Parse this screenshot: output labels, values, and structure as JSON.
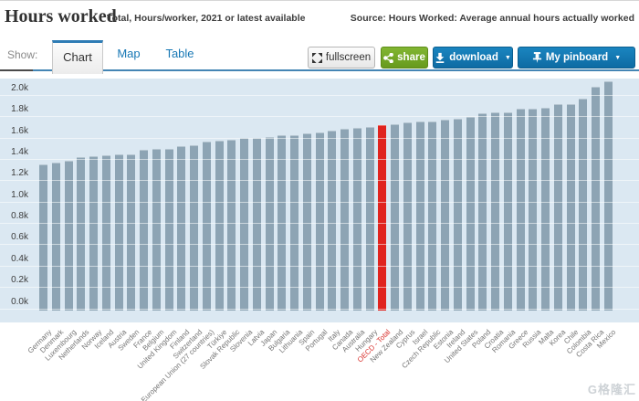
{
  "header": {
    "title": "Hours worked",
    "subtitle": "Total, Hours/worker, 2021 or latest available",
    "source": "Source: Hours Worked: Average annual hours actually worked"
  },
  "tabbar": {
    "show_label": "Show:",
    "tabs": [
      {
        "label": "Chart",
        "active": true
      },
      {
        "label": "Map",
        "active": false
      },
      {
        "label": "Table",
        "active": false
      }
    ],
    "buttons": {
      "fullscreen": "fullscreen",
      "share": "share",
      "download": "download",
      "pinboard": "My pinboard",
      "caret": "▼"
    }
  },
  "colors": {
    "accent_blue": "#1579b2",
    "accent_green": "#74ab2c",
    "tab_active_border": "#2e7cb5",
    "plot_bg": "#dbe8f2",
    "bar": "#8da4b4",
    "bar_highlight": "#e0241f"
  },
  "chart_data": {
    "type": "bar",
    "title": "Hours worked",
    "subtitle": "Total, Hours/worker, 2021 or latest available",
    "unit": "hours (thousands shown on axis)",
    "grid": "on",
    "legend": "none",
    "ylim": [
      0,
      2000
    ],
    "yticks_top_to_bottom": [
      "2.0k",
      "1.8k",
      "1.6k",
      "1.4k",
      "1.2k",
      "1.0k",
      "0.8k",
      "0.6k",
      "0.4k",
      "0.2k",
      "0.0k"
    ],
    "highlight_category": "OECD - Total",
    "categories": [
      "Germany",
      "Denmark",
      "Luxembourg",
      "Netherlands",
      "Norway",
      "Iceland",
      "Austria",
      "Sweden",
      "France",
      "Belgium",
      "United Kingdom",
      "Finland",
      "Switzerland",
      "European Union (27 countries)",
      "Türkiye",
      "Slovak Republic",
      "Slovenia",
      "Latvia",
      "Japan",
      "Bulgaria",
      "Lithuania",
      "Spain",
      "Portugal",
      "Italy",
      "Canada",
      "Australia",
      "Hungary",
      "OECD - Total",
      "New Zealand",
      "Cyprus",
      "Israel",
      "Czech Republic",
      "Estonia",
      "Ireland",
      "United States",
      "Poland",
      "Croatia",
      "Romania",
      "Greece",
      "Russia",
      "Malta",
      "Korea",
      "Chile",
      "Colombia",
      "Costa Rica",
      "Mexico"
    ],
    "values": [
      1349,
      1363,
      1382,
      1417,
      1427,
      1433,
      1442,
      1444,
      1490,
      1493,
      1497,
      1518,
      1533,
      1566,
      1572,
      1583,
      1596,
      1601,
      1607,
      1619,
      1620,
      1641,
      1649,
      1669,
      1685,
      1694,
      1697,
      1716,
      1730,
      1745,
      1753,
      1753,
      1767,
      1775,
      1791,
      1830,
      1835,
      1838,
      1872,
      1874,
      1882,
      1915,
      1916,
      1964,
      2073,
      2128
    ]
  },
  "watermark": "G格隆汇"
}
